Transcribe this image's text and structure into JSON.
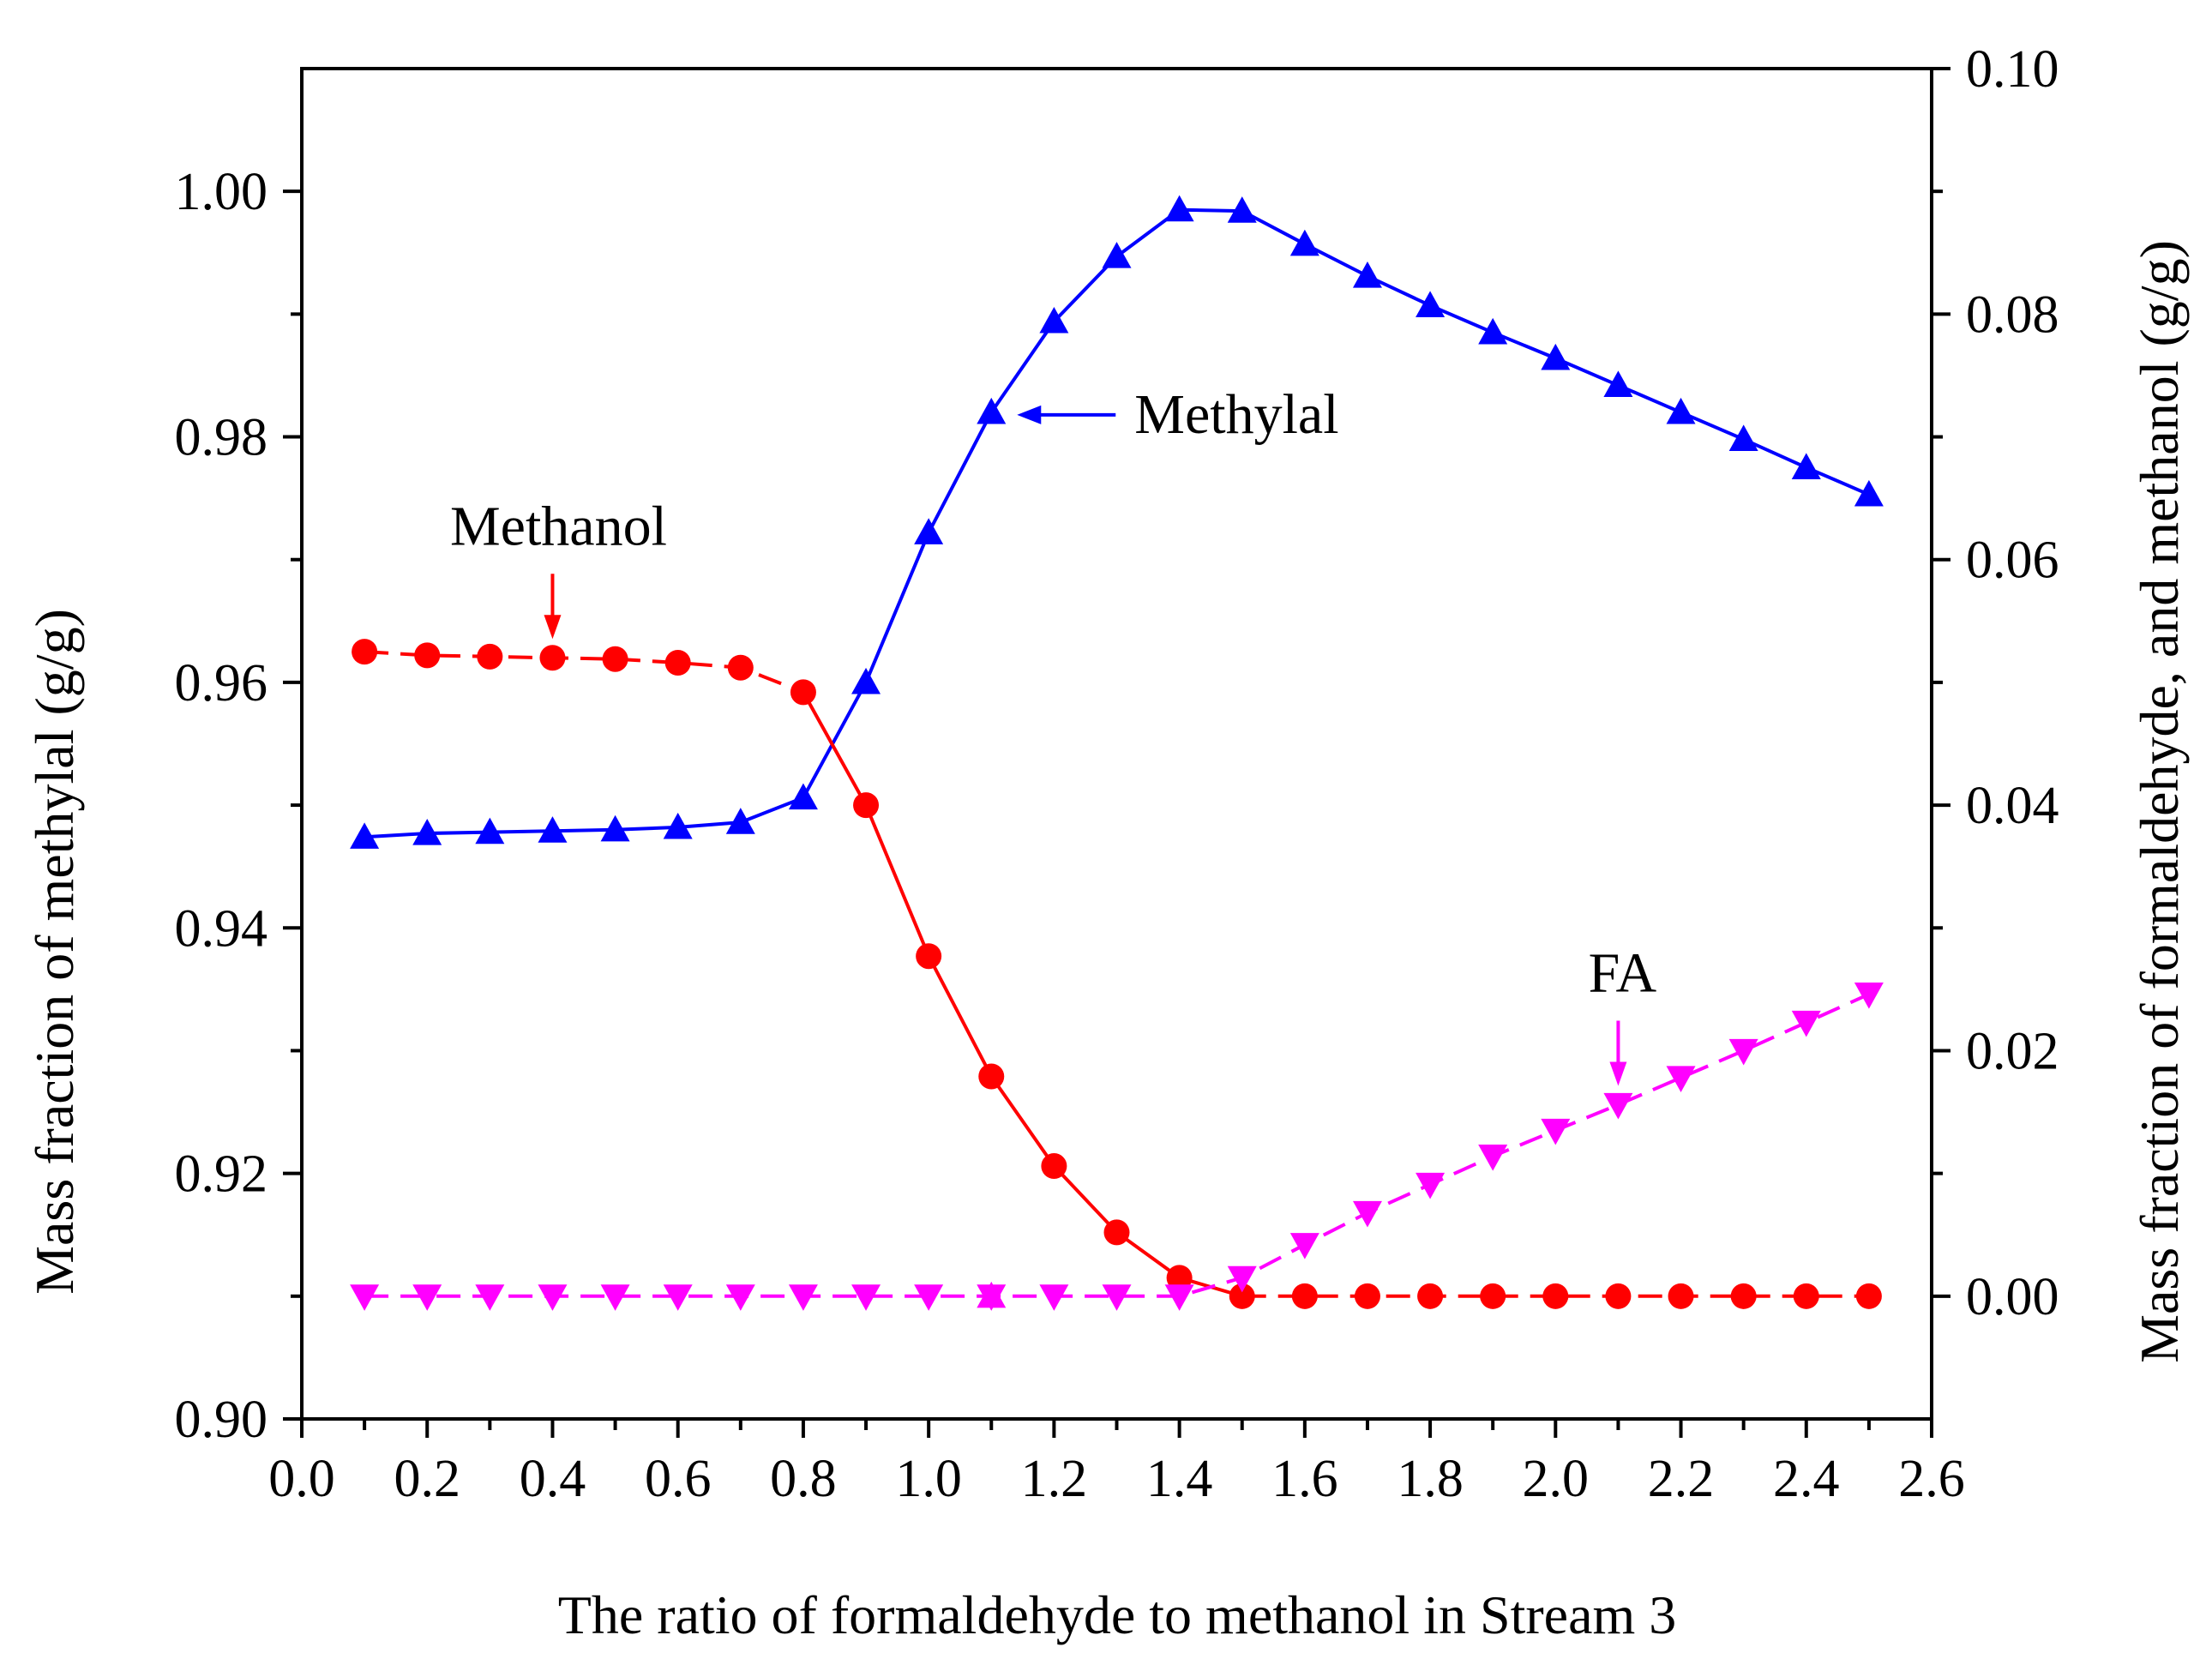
{
  "chart_data": {
    "type": "line",
    "xlabel": "The ratio of formaldehyde to methanol in Stream 3",
    "ylabel_left": "Mass fraction of methylal (g/g)",
    "ylabel_right": "Mass fraction of formaldehyde, and methanol (g/g)",
    "xlim": [
      0.0,
      2.6
    ],
    "ylim_left": [
      0.9,
      1.01
    ],
    "ylim_right": [
      -0.01,
      0.1
    ],
    "x_ticks": [
      "0.0",
      "0.2",
      "0.4",
      "0.6",
      "0.8",
      "1.0",
      "1.2",
      "1.4",
      "1.6",
      "1.8",
      "2.0",
      "2.2",
      "2.4",
      "2.6"
    ],
    "y_ticks_left": [
      "0.90",
      "0.92",
      "0.94",
      "0.96",
      "0.98",
      "1.00"
    ],
    "y_ticks_right": [
      "0.00",
      "0.02",
      "0.04",
      "0.06",
      "0.08",
      "0.10"
    ],
    "x": [
      0.1,
      0.2,
      0.3,
      0.4,
      0.5,
      0.6,
      0.7,
      0.8,
      0.9,
      1.0,
      1.1,
      1.2,
      1.3,
      1.4,
      1.5,
      1.6,
      1.7,
      1.8,
      1.9,
      2.0,
      2.1,
      2.2,
      2.3,
      2.4,
      2.5
    ],
    "series": [
      {
        "name": "Methylal",
        "axis": "left",
        "color": "#0000ff",
        "marker": "triangle-up",
        "dash": "solid",
        "values": [
          0.9474,
          0.9477,
          0.9478,
          0.9479,
          0.948,
          0.9482,
          0.9486,
          0.9506,
          0.96,
          0.9722,
          0.982,
          0.9894,
          0.9947,
          0.9985,
          0.9984,
          0.9957,
          0.9931,
          0.9907,
          0.9885,
          0.9864,
          0.9842,
          0.982,
          0.9798,
          0.9775,
          0.9753
        ]
      },
      {
        "name": "Methanol",
        "axis": "right",
        "color": "#ff0000",
        "marker": "circle",
        "dash": "dashed-then-solid",
        "values": [
          0.0525,
          0.0522,
          0.0521,
          0.052,
          0.0519,
          0.0516,
          0.0512,
          0.0492,
          0.04,
          0.0277,
          0.0179,
          0.0106,
          0.0052,
          0.0015,
          0.0,
          0.0,
          0.0,
          0.0,
          0.0,
          0.0,
          0.0,
          0.0,
          0.0,
          0.0,
          0.0
        ]
      },
      {
        "name": "FA",
        "axis": "right",
        "color": "#ff00ff",
        "marker": "triangle-down",
        "dash": "dashed",
        "values": [
          0.0,
          0.0,
          0.0,
          0.0,
          0.0,
          0.0,
          0.0,
          0.0,
          0.0,
          0.0,
          0.0,
          0.0,
          0.0,
          0.0,
          0.0015,
          0.0042,
          0.0068,
          0.0091,
          0.0114,
          0.0135,
          0.0156,
          0.0178,
          0.02,
          0.0223,
          0.0246
        ]
      }
    ],
    "annotations": [
      {
        "text": "Methylal",
        "points_to": "Methylal",
        "at_x": 1.1
      },
      {
        "text": "Methanol",
        "points_to": "Methanol",
        "at_x": 0.4
      },
      {
        "text": "FA",
        "points_to": "FA",
        "at_x": 2.1
      }
    ]
  }
}
